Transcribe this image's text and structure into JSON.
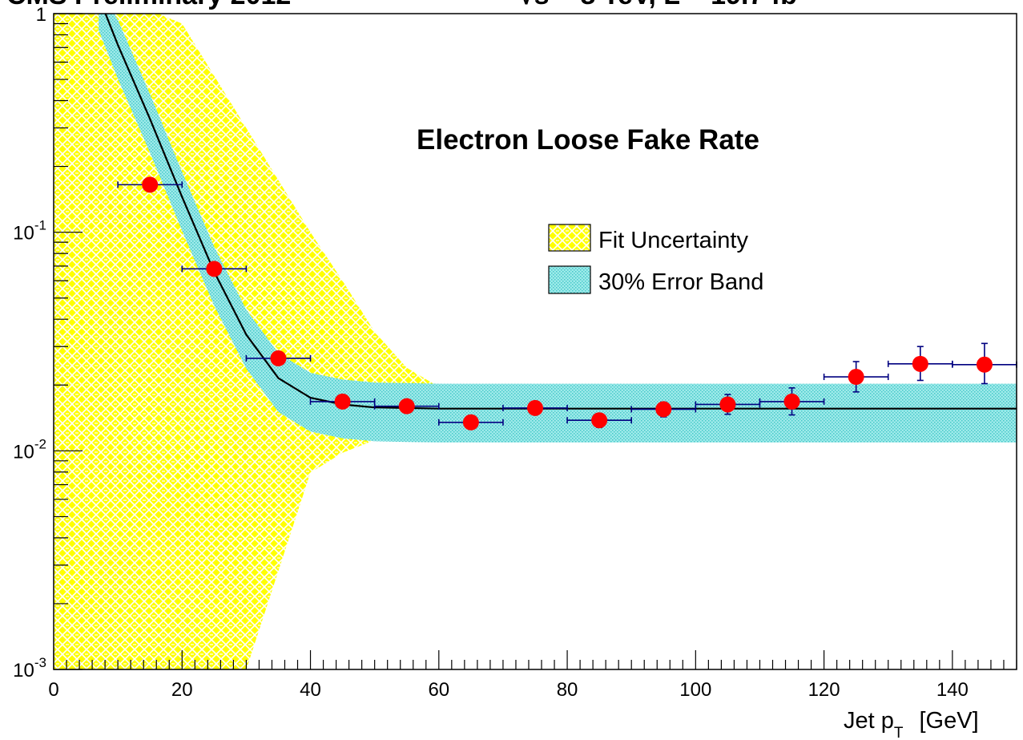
{
  "chart_data": {
    "type": "scatter",
    "header_left": "CMS Preliminary 2012",
    "header_right": "√s = 8 TeV, L = 19.7 fb",
    "header_right_sup": "-1",
    "title": "Electron Loose Fake Rate",
    "xlabel_main": "Jet p",
    "xlabel_sub": "T",
    "xlabel_unit": "[GeV]",
    "xlim": [
      0,
      150
    ],
    "ylim": [
      0.001,
      1
    ],
    "y_scale": "log",
    "grid": false,
    "legend_placement": "center-right",
    "x_ticks": [
      0,
      20,
      40,
      60,
      80,
      100,
      120,
      140
    ],
    "y_ticks": [
      {
        "value": 1,
        "base": "1",
        "exp": ""
      },
      {
        "value": 0.1,
        "base": "10",
        "exp": "-1"
      },
      {
        "value": 0.01,
        "base": "10",
        "exp": "-2"
      },
      {
        "value": 0.001,
        "base": "10",
        "exp": "-3"
      }
    ],
    "series": [
      {
        "name": "Data",
        "kind": "points",
        "color": "#ff0000",
        "errcolor": "#000080",
        "x": [
          15,
          25,
          35,
          45,
          55,
          65,
          75,
          85,
          95,
          105,
          115,
          125,
          135,
          145
        ],
        "xerr": [
          5,
          5,
          5,
          5,
          5,
          5,
          5,
          5,
          5,
          5,
          5,
          5,
          5,
          5
        ],
        "y": [
          0.165,
          0.068,
          0.0265,
          0.0168,
          0.016,
          0.0135,
          0.0157,
          0.0138,
          0.0155,
          0.0163,
          0.0168,
          0.0218,
          0.025,
          0.0248
        ],
        "yerr_low": [
          0,
          0,
          0,
          0.0007,
          0.0005,
          0.0006,
          0.0006,
          0.001,
          0.0012,
          0.0016,
          0.0022,
          0.0032,
          0.004,
          0.0045
        ],
        "yerr_high": [
          0,
          0,
          0,
          0.0007,
          0.0005,
          0.0006,
          0.0006,
          0.001,
          0.0012,
          0.0018,
          0.0026,
          0.0038,
          0.005,
          0.0062
        ]
      },
      {
        "name": "Fit",
        "kind": "line",
        "color": "#000000",
        "x": [
          7,
          10,
          15,
          20,
          25,
          30,
          35,
          40,
          45,
          50,
          55,
          60,
          70,
          80,
          100,
          120,
          150
        ],
        "y": [
          1.2,
          0.72,
          0.33,
          0.145,
          0.066,
          0.034,
          0.0215,
          0.0175,
          0.0163,
          0.0158,
          0.0157,
          0.0156,
          0.0156,
          0.0156,
          0.0156,
          0.0156,
          0.0156
        ]
      },
      {
        "name": "Fit Uncertainty",
        "kind": "band",
        "color": "#ffff00",
        "x": [
          0,
          10,
          20,
          30,
          40,
          45,
          50,
          55,
          60
        ],
        "upper": [
          1.2,
          1.2,
          0.9,
          0.3,
          0.1,
          0.06,
          0.035,
          0.024,
          0.0196
        ],
        "lower": [
          0.001,
          0.001,
          0.001,
          0.001,
          0.00795,
          0.0098,
          0.0112,
          0.0115,
          0.01175
        ]
      },
      {
        "name": "30% Error Band",
        "kind": "band",
        "color": "#66dddd",
        "x": [
          7,
          10,
          15,
          20,
          25,
          30,
          35,
          40,
          45,
          50,
          55,
          60,
          70,
          80,
          100,
          120,
          150
        ],
        "upper": [
          1.3,
          0.936,
          0.429,
          0.1885,
          0.0858,
          0.0442,
          0.02795,
          0.02275,
          0.0212,
          0.02054,
          0.02041,
          0.02028,
          0.02028,
          0.02028,
          0.02028,
          0.02028,
          0.02028
        ],
        "lower": [
          0.84,
          0.504,
          0.231,
          0.1015,
          0.0462,
          0.0238,
          0.01505,
          0.01225,
          0.01141,
          0.01106,
          0.01099,
          0.01092,
          0.01092,
          0.01092,
          0.01092,
          0.01092,
          0.01092
        ]
      }
    ],
    "legend": [
      {
        "label": "Fit Uncertainty",
        "series": "Fit Uncertainty"
      },
      {
        "label": "30% Error Band",
        "series": "30% Error Band"
      }
    ]
  }
}
